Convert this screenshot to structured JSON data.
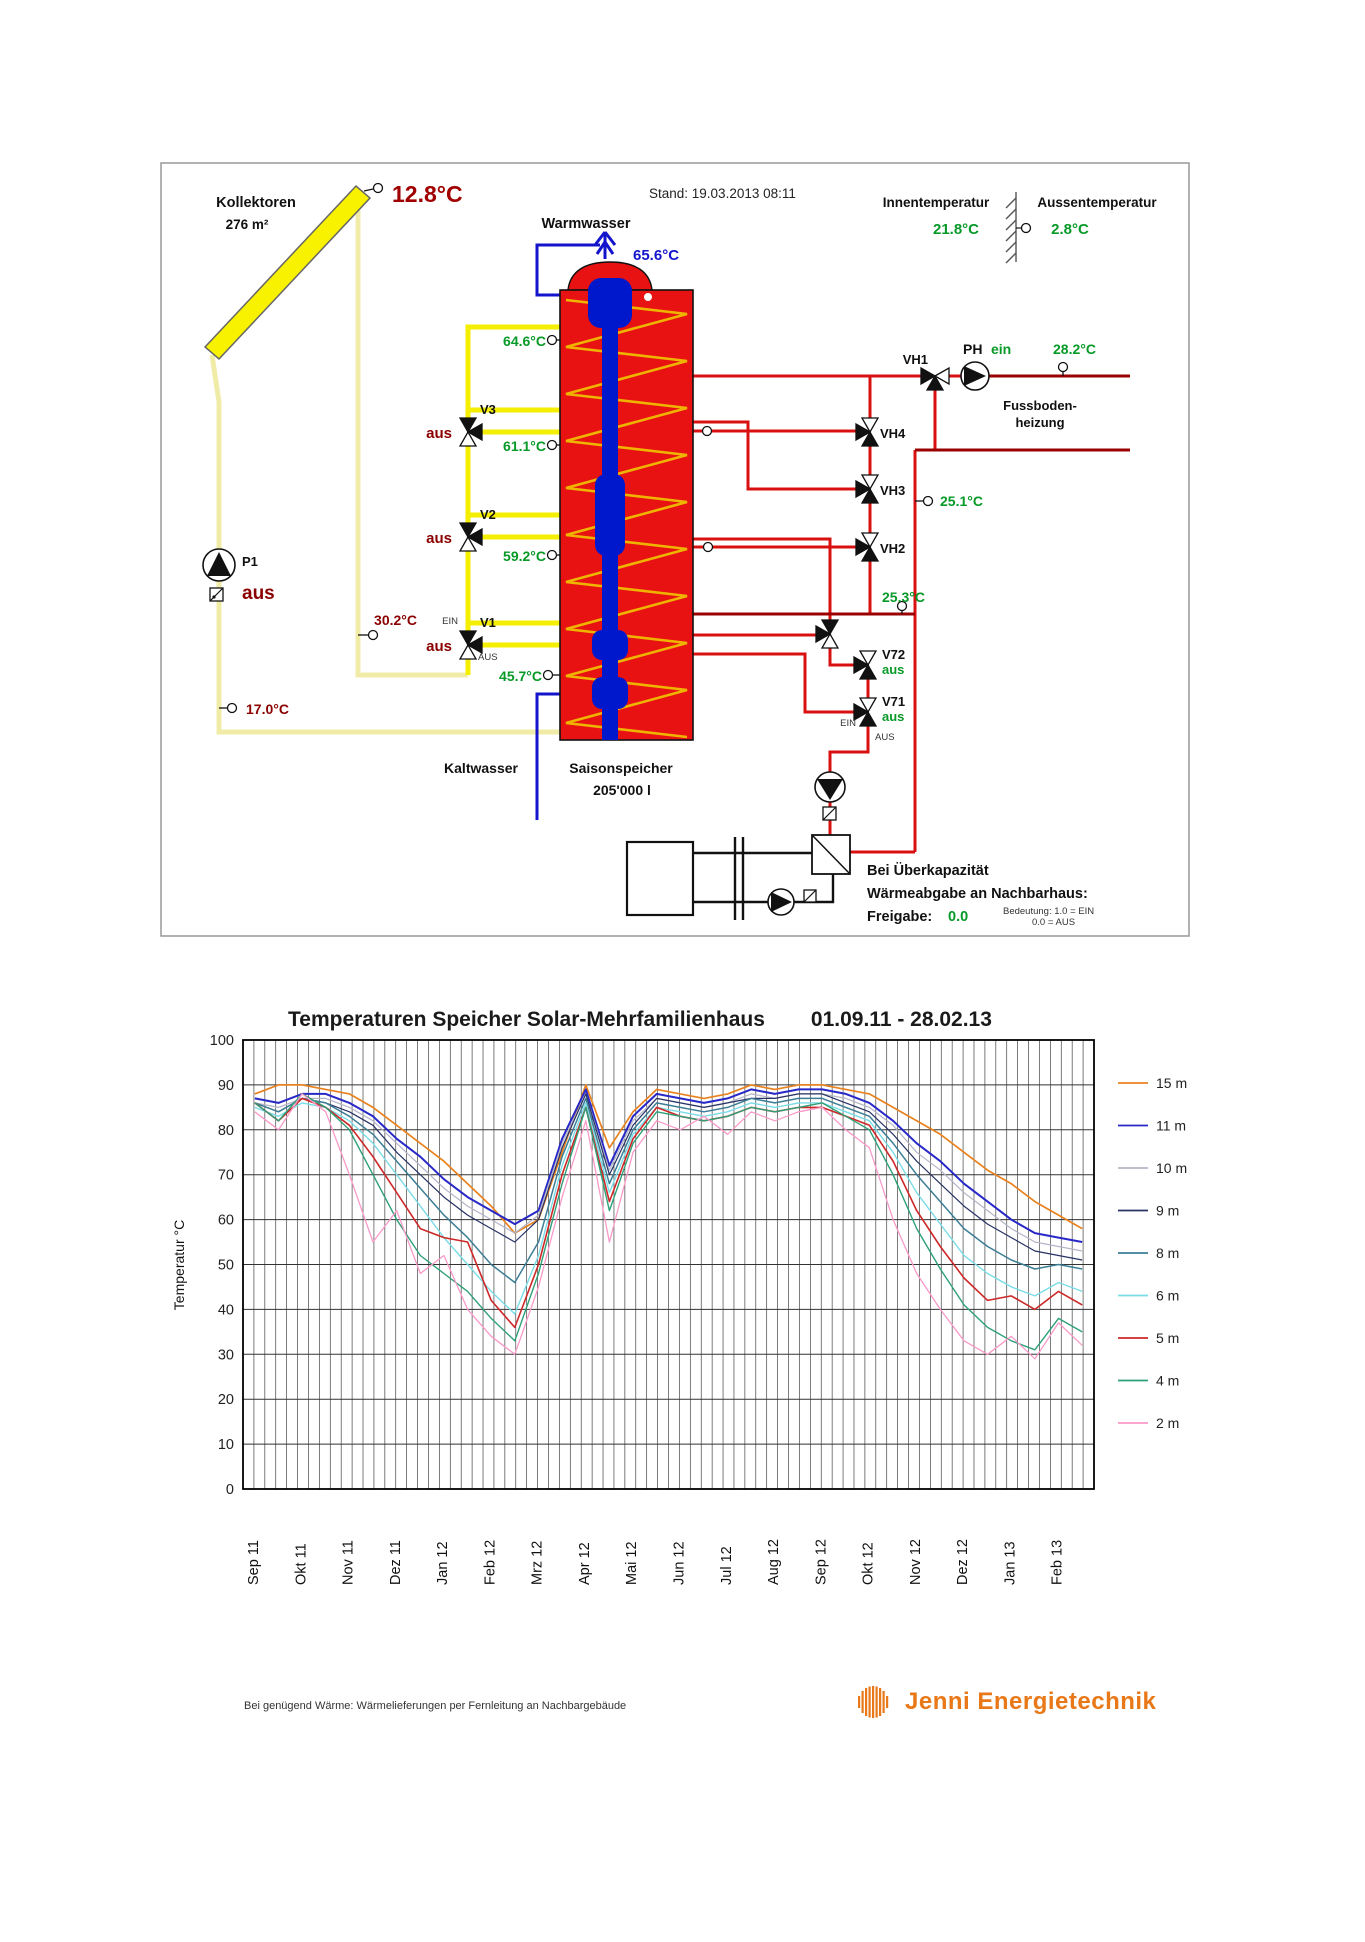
{
  "diagram": {
    "stand": "Stand: 19.03.2013 08:11",
    "collector": {
      "label": "Kollektoren",
      "area": "276 m²",
      "temp": "12.8°C"
    },
    "indoor": {
      "label": "Innentemperatur",
      "value": "21.8°C"
    },
    "outdoor": {
      "label": "Aussentemperatur",
      "value": "2.8°C"
    },
    "warmwasser": {
      "label": "Warmwasser",
      "temp": "65.6°C"
    },
    "kaltwasser_label": "Kaltwasser",
    "tank": {
      "name": "Saisonspeicher",
      "volume": "205'000 l",
      "sensor_top": "64.6°C",
      "sensor_v3": "61.1°C",
      "sensor_v2": "59.2°C",
      "sensor_v1": "45.7°C"
    },
    "solar": {
      "p1_label": "P1",
      "p1_state": "aus",
      "mid_temp": "30.2°C",
      "return_temp": "17.0°C"
    },
    "valves": {
      "v3": {
        "label": "V3",
        "state": "aus"
      },
      "v2": {
        "label": "V2",
        "state": "aus"
      },
      "v1": {
        "label": "V1",
        "state": "aus",
        "ein": "EIN",
        "aus": "AUS"
      },
      "vh1": {
        "label": "VH1"
      },
      "vh4": {
        "label": "VH4"
      },
      "vh3": {
        "label": "VH3"
      },
      "vh2": {
        "label": "VH2"
      },
      "v72": {
        "label": "V72",
        "state": "aus"
      },
      "v71": {
        "label": "V71",
        "state": "aus",
        "ein": "EIN",
        "aus": "AUS"
      }
    },
    "heating": {
      "ph_label": "PH",
      "ph_state": "ein",
      "supply_temp": "28.2°C",
      "return_temp": "25.1°C",
      "mid_temp": "25.3°C",
      "area_line1": "Fussboden-",
      "area_line2": "heizung"
    },
    "overcapacity": {
      "line1": "Bei Überkapazität",
      "line2": "Wärmeabgabe an Nachbarhaus:",
      "freigabe_label": "Freigabe:",
      "freigabe_value": "0.0",
      "bedeutung1": "Bedeutung: 1.0 = EIN",
      "bedeutung2": "0.0 = AUS"
    },
    "colors": {
      "value_green": "#089a28",
      "alarm_dark_red": "#8b0000",
      "pipe_red": "#d81010",
      "pipe_dark_red": "#9b0000",
      "pipe_yellow": "#f4ee00",
      "pipe_pale_yellow": "#f0eca8",
      "pipe_blue": "#1414cc",
      "tank_red": "#e81212",
      "coil_gold": "#efb400"
    }
  },
  "chart_data": {
    "type": "line",
    "title": "Temperaturen Speicher Solar-Mehrfamilienhaus",
    "period": "01.09.11 - 28.02.13",
    "ylabel": "Temperatur °C",
    "ylim": [
      0,
      100
    ],
    "ytick_step": 10,
    "grid": "weekly vertical lines, horizontal every 10°C",
    "legend_position": "right",
    "x_unit": "half-month steps from Sep 2011 to Feb 2013",
    "categories": [
      "Sep 11",
      "Okt 11",
      "Nov 11",
      "Dez 11",
      "Jan 12",
      "Feb 12",
      "Mrz 12",
      "Apr 12",
      "Mai 12",
      "Jun 12",
      "Jul 12",
      "Aug 12",
      "Sep 12",
      "Okt 12",
      "Nov 12",
      "Dez 12",
      "Jan 13",
      "Feb 13"
    ],
    "series": [
      {
        "name": "15 m",
        "color": "#e8821e",
        "width": 1.7,
        "values": [
          88,
          90,
          90,
          89,
          88,
          85,
          81,
          77,
          73,
          68,
          63,
          57,
          60,
          75,
          90,
          76,
          84,
          89,
          88,
          87,
          88,
          90,
          89,
          90,
          90,
          89,
          88,
          85,
          82,
          79,
          75,
          71,
          68,
          64,
          61,
          58
        ]
      },
      {
        "name": "11 m",
        "color": "#2828c8",
        "width": 2.0,
        "values": [
          87,
          86,
          88,
          88,
          86,
          83,
          78,
          74,
          69,
          65,
          62,
          59,
          62,
          78,
          89,
          72,
          83,
          88,
          87,
          86,
          87,
          89,
          88,
          89,
          89,
          88,
          86,
          82,
          77,
          73,
          68,
          64,
          60,
          57,
          56,
          55
        ]
      },
      {
        "name": "10 m",
        "color": "#b4b4c8",
        "width": 1.2,
        "values": [
          86,
          85,
          87,
          87,
          85,
          82,
          77,
          72,
          67,
          63,
          60,
          57,
          61,
          77,
          88,
          71,
          82,
          87,
          86,
          85,
          86,
          88,
          87,
          88,
          88,
          87,
          85,
          81,
          75,
          71,
          66,
          62,
          58,
          55,
          54,
          53
        ]
      },
      {
        "name": "9 m",
        "color": "#283264",
        "width": 1.2,
        "values": [
          86,
          84,
          87,
          86,
          84,
          81,
          75,
          70,
          65,
          61,
          58,
          55,
          60,
          76,
          88,
          70,
          81,
          87,
          86,
          85,
          86,
          87,
          87,
          88,
          88,
          86,
          84,
          79,
          73,
          68,
          63,
          59,
          56,
          53,
          52,
          51
        ]
      },
      {
        "name": "8 m",
        "color": "#3c7e96",
        "width": 1.5,
        "values": [
          86,
          84,
          87,
          86,
          83,
          79,
          73,
          67,
          61,
          56,
          50,
          46,
          55,
          74,
          87,
          68,
          80,
          86,
          85,
          84,
          85,
          87,
          86,
          87,
          87,
          85,
          83,
          77,
          70,
          64,
          58,
          54,
          51,
          49,
          50,
          49
        ]
      },
      {
        "name": "6 m",
        "color": "#7adce6",
        "width": 1.4,
        "values": [
          85,
          83,
          86,
          85,
          82,
          77,
          70,
          63,
          56,
          50,
          44,
          39,
          52,
          72,
          86,
          66,
          79,
          85,
          84,
          83,
          84,
          86,
          85,
          86,
          86,
          84,
          82,
          75,
          66,
          59,
          52,
          48,
          45,
          43,
          46,
          44
        ]
      },
      {
        "name": "5 m",
        "color": "#cd2828",
        "width": 1.6,
        "values": [
          86,
          82,
          87,
          85,
          81,
          74,
          66,
          58,
          56,
          55,
          42,
          36,
          50,
          70,
          85,
          64,
          78,
          85,
          83,
          82,
          83,
          85,
          84,
          85,
          85,
          83,
          81,
          73,
          62,
          54,
          47,
          42,
          43,
          40,
          44,
          41
        ]
      },
      {
        "name": "4 m",
        "color": "#2ea078",
        "width": 1.4,
        "values": [
          86,
          82,
          88,
          85,
          80,
          70,
          60,
          52,
          48,
          44,
          38,
          33,
          48,
          68,
          85,
          62,
          77,
          84,
          83,
          82,
          83,
          85,
          84,
          85,
          86,
          83,
          80,
          70,
          58,
          49,
          41,
          36,
          33,
          31,
          38,
          35
        ]
      },
      {
        "name": "2 m",
        "color": "#f99ac8",
        "width": 1.3,
        "values": [
          84,
          80,
          88,
          84,
          70,
          55,
          62,
          48,
          52,
          40,
          34,
          30,
          45,
          65,
          82,
          55,
          75,
          82,
          80,
          83,
          79,
          84,
          82,
          84,
          85,
          80,
          76,
          60,
          48,
          40,
          33,
          30,
          34,
          29,
          37,
          32
        ]
      }
    ]
  },
  "footer": {
    "note": "Bei genügend Wärme: Wärmelieferungen per Fernleitung an Nachbargebäude",
    "logo_text": "Jenni Energietechnik",
    "logo_color": "#e87818"
  }
}
